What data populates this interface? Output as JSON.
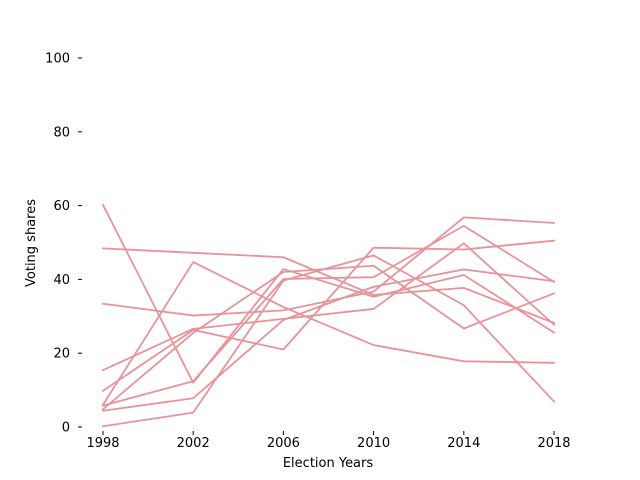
{
  "chart_data": {
    "type": "line",
    "title": "",
    "xlabel": "Election Years",
    "ylabel": "Voting shares",
    "x": [
      1998,
      2002,
      2006,
      2010,
      2014,
      2018
    ],
    "xlim": [
      1998,
      2018
    ],
    "ylim": [
      0,
      100
    ],
    "yticks": [
      0,
      20,
      40,
      60,
      80,
      100
    ],
    "grid": false,
    "legend": "none",
    "line_color": "#e8939a",
    "series": [
      {
        "values": [
          60.2,
          12.0,
          42.8,
          35.3,
          41.2,
          25.6
        ]
      },
      {
        "values": [
          48.4,
          47.2,
          46.0,
          35.8,
          37.7,
          28.2
        ]
      },
      {
        "values": [
          33.4,
          30.2,
          31.6,
          36.7,
          56.8,
          55.3
        ]
      },
      {
        "values": [
          15.4,
          26.6,
          29.3,
          32.0,
          49.8,
          27.7
        ]
      },
      {
        "values": [
          9.8,
          26.3,
          21.0,
          48.6,
          48.1,
          50.5
        ]
      },
      {
        "values": [
          6.0,
          44.7,
          32.5,
          22.2,
          17.8,
          17.4
        ]
      },
      {
        "values": [
          5.8,
          12.4,
          40.1,
          40.6,
          54.5,
          39.3
        ]
      },
      {
        "values": [
          4.8,
          25.5,
          42.0,
          43.7,
          26.7,
          36.2
        ]
      },
      {
        "values": [
          4.4,
          7.8,
          29.0,
          38.0,
          42.7,
          39.5
        ]
      },
      {
        "values": [
          0.2,
          3.9,
          39.7,
          46.5,
          33.0,
          6.9
        ]
      }
    ]
  }
}
